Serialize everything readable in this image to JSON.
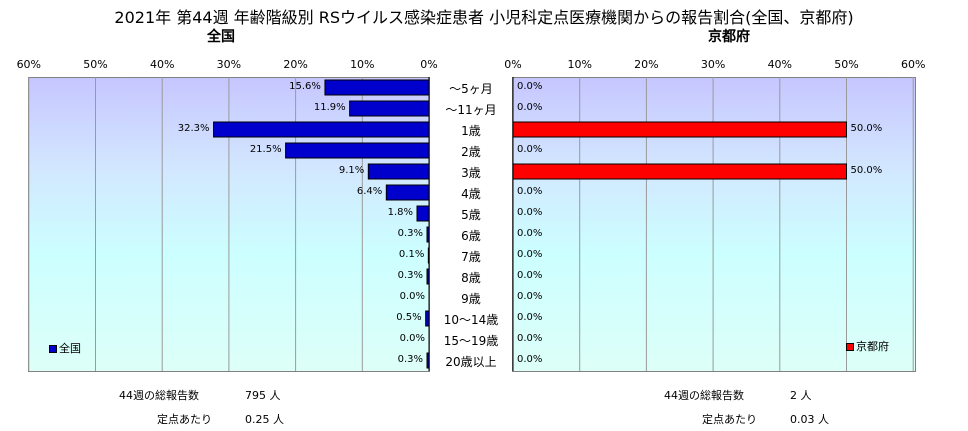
{
  "title": "2021年 第44週 年齢階級別 RSウイルス感染症患者 小児科定点医療機関からの報告割合(全国、京都府)",
  "chart_data": [
    {
      "type": "bar",
      "orientation": "horizontal",
      "direction": "right-to-left",
      "title": "全国",
      "categories": [
        "～5ヶ月",
        "～11ヶ月",
        "1歳",
        "2歳",
        "3歳",
        "4歳",
        "5歳",
        "6歳",
        "7歳",
        "8歳",
        "9歳",
        "10～14歳",
        "15～19歳",
        "20歳以上"
      ],
      "series": [
        {
          "name": "全国",
          "values": [
            15.6,
            11.9,
            32.3,
            21.5,
            9.1,
            6.4,
            1.8,
            0.3,
            0.1,
            0.3,
            0.0,
            0.5,
            0.0,
            0.3
          ],
          "color": "#0000cc"
        }
      ],
      "value_labels": [
        "15.6%",
        "11.9%",
        "32.3%",
        "21.5%",
        "9.1%",
        "6.4%",
        "1.8%",
        "0.3%",
        "0.1%",
        "0.3%",
        "0.0%",
        "0.5%",
        "0.0%",
        "0.3%"
      ],
      "xlim": [
        0,
        60
      ],
      "ticks": [
        "60%",
        "50%",
        "40%",
        "30%",
        "20%",
        "10%",
        "0%"
      ],
      "grid": true,
      "legend_position": "bottom-left"
    },
    {
      "type": "bar",
      "orientation": "horizontal",
      "direction": "left-to-right",
      "title": "京都府",
      "categories": [
        "～5ヶ月",
        "～11ヶ月",
        "1歳",
        "2歳",
        "3歳",
        "4歳",
        "5歳",
        "6歳",
        "7歳",
        "8歳",
        "9歳",
        "10～14歳",
        "15～19歳",
        "20歳以上"
      ],
      "series": [
        {
          "name": "京都府",
          "values": [
            0.0,
            0.0,
            50.0,
            0.0,
            50.0,
            0.0,
            0.0,
            0.0,
            0.0,
            0.0,
            0.0,
            0.0,
            0.0,
            0.0
          ],
          "color": "#ff0000"
        }
      ],
      "value_labels": [
        "0.0%",
        "0.0%",
        "50.0%",
        "0.0%",
        "50.0%",
        "0.0%",
        "0.0%",
        "0.0%",
        "0.0%",
        "0.0%",
        "0.0%",
        "0.0%",
        "0.0%",
        "0.0%"
      ],
      "xlim": [
        0,
        60
      ],
      "ticks": [
        "0%",
        "10%",
        "20%",
        "30%",
        "40%",
        "50%",
        "60%"
      ],
      "grid": true,
      "legend_position": "bottom-right"
    }
  ],
  "footer": {
    "left": {
      "total_label": "44週の総報告数",
      "total_value": "795 人",
      "per_label": "定点あたり",
      "per_value": "0.25 人"
    },
    "right": {
      "total_label": "44週の総報告数",
      "total_value": "2 人",
      "per_label": "定点あたり",
      "per_value": "0.03 人"
    }
  }
}
